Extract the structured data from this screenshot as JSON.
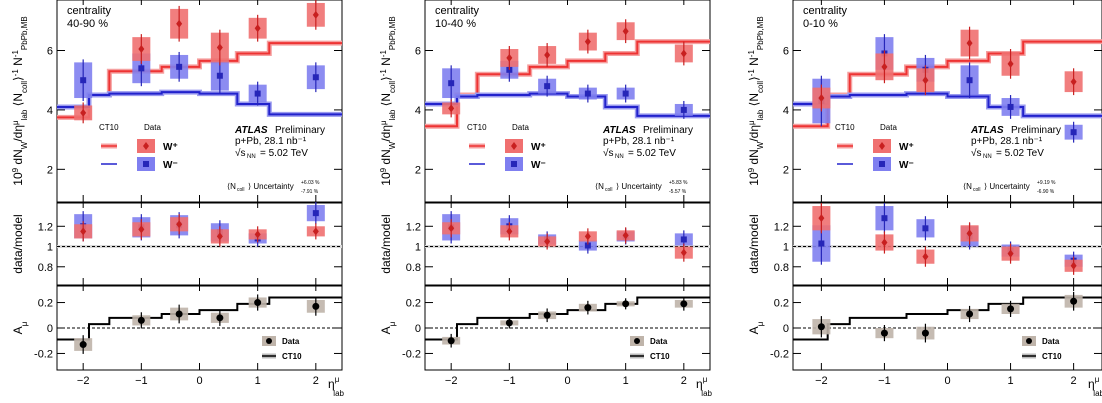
{
  "common": {
    "ylabel_main": "10⁹ dN_W/dη^μ_lab ⟨N_coll⟩⁻¹ N⁻¹_PbPb,MB",
    "ylabel_main_parts": [
      "10",
      "9",
      " dN",
      "W",
      "/dη",
      "μ",
      "lab",
      " ⟨N",
      "coll",
      "⟩",
      "-1",
      " N",
      "-1",
      "PbPb,MB"
    ],
    "ylabel_ratio": "data/model",
    "ylabel_asym": "A",
    "ylabel_asym_sub": "μ",
    "xlabel": "η",
    "xlabel_sup": "μ",
    "xlabel_sub": "lab",
    "legend_ct10": "CT10",
    "legend_data": "Data",
    "legend_wplus": "W⁺",
    "legend_wminus": "W⁻",
    "atlas": "ATLAS",
    "preliminary": "Preliminary",
    "lumi": "p+Pb, 28.1 nb⁻¹",
    "energy": "√s_NN = 5.02 TeV",
    "energy_text": "= 5.02 TeV",
    "uncert_label": "Uncertainty",
    "ncoll_label": "⟨N",
    "ncoll_sub": "coll",
    "asym_legend_data": "Data",
    "asym_legend_ct10": "CT10",
    "colors": {
      "wplus": "#ee3333",
      "wplus_box": "#f07070",
      "wminus": "#2222cc",
      "wminus_box": "#7f7ff0",
      "asym_box": "#bfb4aa"
    }
  },
  "chart_data": [
    {
      "type": "line",
      "panel": "40-90",
      "centrality_label": "centrality",
      "centrality_value": "40-90 %",
      "uncert_up": "+6.03 %",
      "uncert_down": "-7.91 %",
      "x": [
        -2.0,
        -1.0,
        -0.35,
        0.35,
        1.0,
        2.0
      ],
      "xlim": [
        -2.45,
        2.45
      ],
      "ylim_main": [
        0.9,
        7.7
      ],
      "ylim_ratio": [
        0.62,
        1.43
      ],
      "ylim_asym": [
        -0.33,
        0.33
      ],
      "x_ticks": [
        -2,
        -1,
        0,
        1,
        2
      ],
      "y_ticks_main": [
        2,
        4,
        6
      ],
      "y_ticks_ratio": [
        0.8,
        1,
        1.2
      ],
      "y_ticks_asym": [
        -0.2,
        0,
        0.2
      ],
      "ct10_edges": [
        -2.45,
        -1.9,
        -1.55,
        -0.65,
        0.0,
        0.65,
        1.2,
        2.45
      ],
      "ct10_wplus": [
        3.75,
        4.5,
        5.3,
        5.45,
        5.65,
        5.9,
        6.25
      ],
      "ct10_wminus": [
        4.1,
        4.5,
        4.55,
        4.6,
        4.55,
        4.2,
        3.85
      ],
      "wplus": [
        3.9,
        6.05,
        6.9,
        6.1,
        6.75,
        7.2
      ],
      "wplus_err": [
        0.25,
        0.4,
        0.5,
        0.5,
        0.35,
        0.4
      ],
      "wminus": [
        5.0,
        5.4,
        5.45,
        5.15,
        4.55,
        5.1
      ],
      "wminus_err": [
        0.6,
        0.5,
        0.4,
        0.5,
        0.3,
        0.4
      ],
      "ratio_wplus": [
        1.15,
        1.17,
        1.22,
        1.1,
        1.12,
        1.15
      ],
      "ratio_wplus_err": [
        0.07,
        0.07,
        0.07,
        0.07,
        0.05,
        0.05
      ],
      "ratio_wminus": [
        1.2,
        1.19,
        1.21,
        1.14,
        1.08,
        1.33
      ],
      "ratio_wminus_err": [
        0.12,
        0.1,
        0.1,
        0.09,
        0.05,
        0.08
      ],
      "ct10_asym": [
        -0.09,
        0.03,
        0.08,
        0.11,
        0.14,
        0.19,
        0.24
      ],
      "asym": [
        -0.13,
        0.06,
        0.11,
        0.08,
        0.2,
        0.17
      ],
      "asym_err": [
        0.05,
        0.04,
        0.05,
        0.04,
        0.04,
        0.05
      ]
    },
    {
      "type": "line",
      "panel": "10-40",
      "centrality_label": "centrality",
      "centrality_value": "10-40 %",
      "uncert_up": "+5.83 %",
      "uncert_down": "-5.57 %",
      "x": [
        -2.0,
        -1.0,
        -0.35,
        0.35,
        1.0,
        2.0
      ],
      "xlim": [
        -2.45,
        2.45
      ],
      "ylim_main": [
        0.9,
        7.7
      ],
      "ylim_ratio": [
        0.62,
        1.43
      ],
      "ylim_asym": [
        -0.33,
        0.33
      ],
      "x_ticks": [
        -2,
        -1,
        0,
        1,
        2
      ],
      "y_ticks_main": [
        2,
        4,
        6
      ],
      "y_ticks_ratio": [
        0.8,
        1,
        1.2
      ],
      "y_ticks_asym": [
        -0.2,
        0,
        0.2
      ],
      "ct10_edges": [
        -2.45,
        -1.9,
        -1.55,
        -0.65,
        0.0,
        0.65,
        1.2,
        2.45
      ],
      "ct10_wplus": [
        3.45,
        4.5,
        5.2,
        5.45,
        5.65,
        5.9,
        6.3
      ],
      "ct10_wminus": [
        4.2,
        4.45,
        4.5,
        4.55,
        4.45,
        4.1,
        3.8
      ],
      "wplus": [
        4.05,
        5.75,
        5.85,
        6.3,
        6.65,
        5.9
      ],
      "wplus_err": [
        0.2,
        0.3,
        0.3,
        0.3,
        0.3,
        0.3
      ],
      "wminus": [
        4.9,
        5.35,
        4.8,
        4.55,
        4.55,
        4.0
      ],
      "wminus_err": [
        0.5,
        0.3,
        0.25,
        0.2,
        0.2,
        0.2
      ],
      "ratio_wplus": [
        1.18,
        1.15,
        1.05,
        1.1,
        1.11,
        0.94
      ],
      "ratio_wplus_err": [
        0.06,
        0.06,
        0.05,
        0.05,
        0.05,
        0.06
      ],
      "ratio_wminus": [
        1.19,
        1.2,
        1.07,
        1.01,
        1.1,
        1.07
      ],
      "ratio_wminus_err": [
        0.13,
        0.08,
        0.05,
        0.05,
        0.05,
        0.06
      ],
      "ct10_asym": [
        -0.09,
        0.03,
        0.08,
        0.11,
        0.14,
        0.19,
        0.24
      ],
      "asym": [
        -0.1,
        0.04,
        0.1,
        0.16,
        0.19,
        0.19
      ],
      "asym_err": [
        0.03,
        0.02,
        0.03,
        0.03,
        0.02,
        0.03
      ]
    },
    {
      "type": "line",
      "panel": "0-10",
      "centrality_label": "centrality",
      "centrality_value": "0-10 %",
      "uncert_up": "+9.19 %",
      "uncert_down": "-6.90 %",
      "x": [
        -2.0,
        -1.0,
        -0.35,
        0.35,
        1.0,
        2.0
      ],
      "xlim": [
        -2.45,
        2.45
      ],
      "ylim_main": [
        0.9,
        7.7
      ],
      "ylim_ratio": [
        0.62,
        1.43
      ],
      "ylim_asym": [
        -0.33,
        0.33
      ],
      "x_ticks": [
        -2,
        -1,
        0,
        1,
        2
      ],
      "y_ticks_main": [
        2,
        4,
        6
      ],
      "y_ticks_ratio": [
        0.8,
        1,
        1.2
      ],
      "y_ticks_asym": [
        -0.2,
        0,
        0.2
      ],
      "ct10_edges": [
        -2.45,
        -1.9,
        -1.55,
        -0.65,
        0.0,
        0.65,
        1.2,
        2.45
      ],
      "ct10_wplus": [
        3.45,
        4.5,
        5.2,
        5.45,
        5.65,
        5.9,
        6.3
      ],
      "ct10_wminus": [
        4.2,
        4.45,
        4.5,
        4.55,
        4.45,
        4.1,
        3.8
      ],
      "wplus": [
        4.4,
        5.45,
        5.0,
        6.25,
        5.55,
        4.95
      ],
      "wplus_err": [
        0.35,
        0.45,
        0.4,
        0.45,
        0.4,
        0.35
      ],
      "wminus": [
        4.3,
        5.9,
        5.35,
        5.0,
        4.1,
        3.25
      ],
      "wminus_err": [
        0.75,
        0.55,
        0.4,
        0.5,
        0.3,
        0.25
      ],
      "ratio_wplus": [
        1.28,
        1.04,
        0.9,
        1.13,
        0.93,
        0.81
      ],
      "ratio_wplus_err": [
        0.12,
        0.08,
        0.07,
        0.08,
        0.07,
        0.06
      ],
      "ratio_wminus": [
        1.03,
        1.28,
        1.18,
        1.1,
        0.96,
        0.86
      ],
      "ratio_wminus_err": [
        0.18,
        0.12,
        0.09,
        0.1,
        0.06,
        0.06
      ],
      "ct10_asym": [
        -0.09,
        0.03,
        0.08,
        0.11,
        0.14,
        0.19,
        0.24
      ],
      "asym": [
        0.01,
        -0.04,
        -0.04,
        0.11,
        0.15,
        0.21
      ],
      "asym_err": [
        0.06,
        0.04,
        0.05,
        0.04,
        0.04,
        0.05
      ]
    }
  ]
}
